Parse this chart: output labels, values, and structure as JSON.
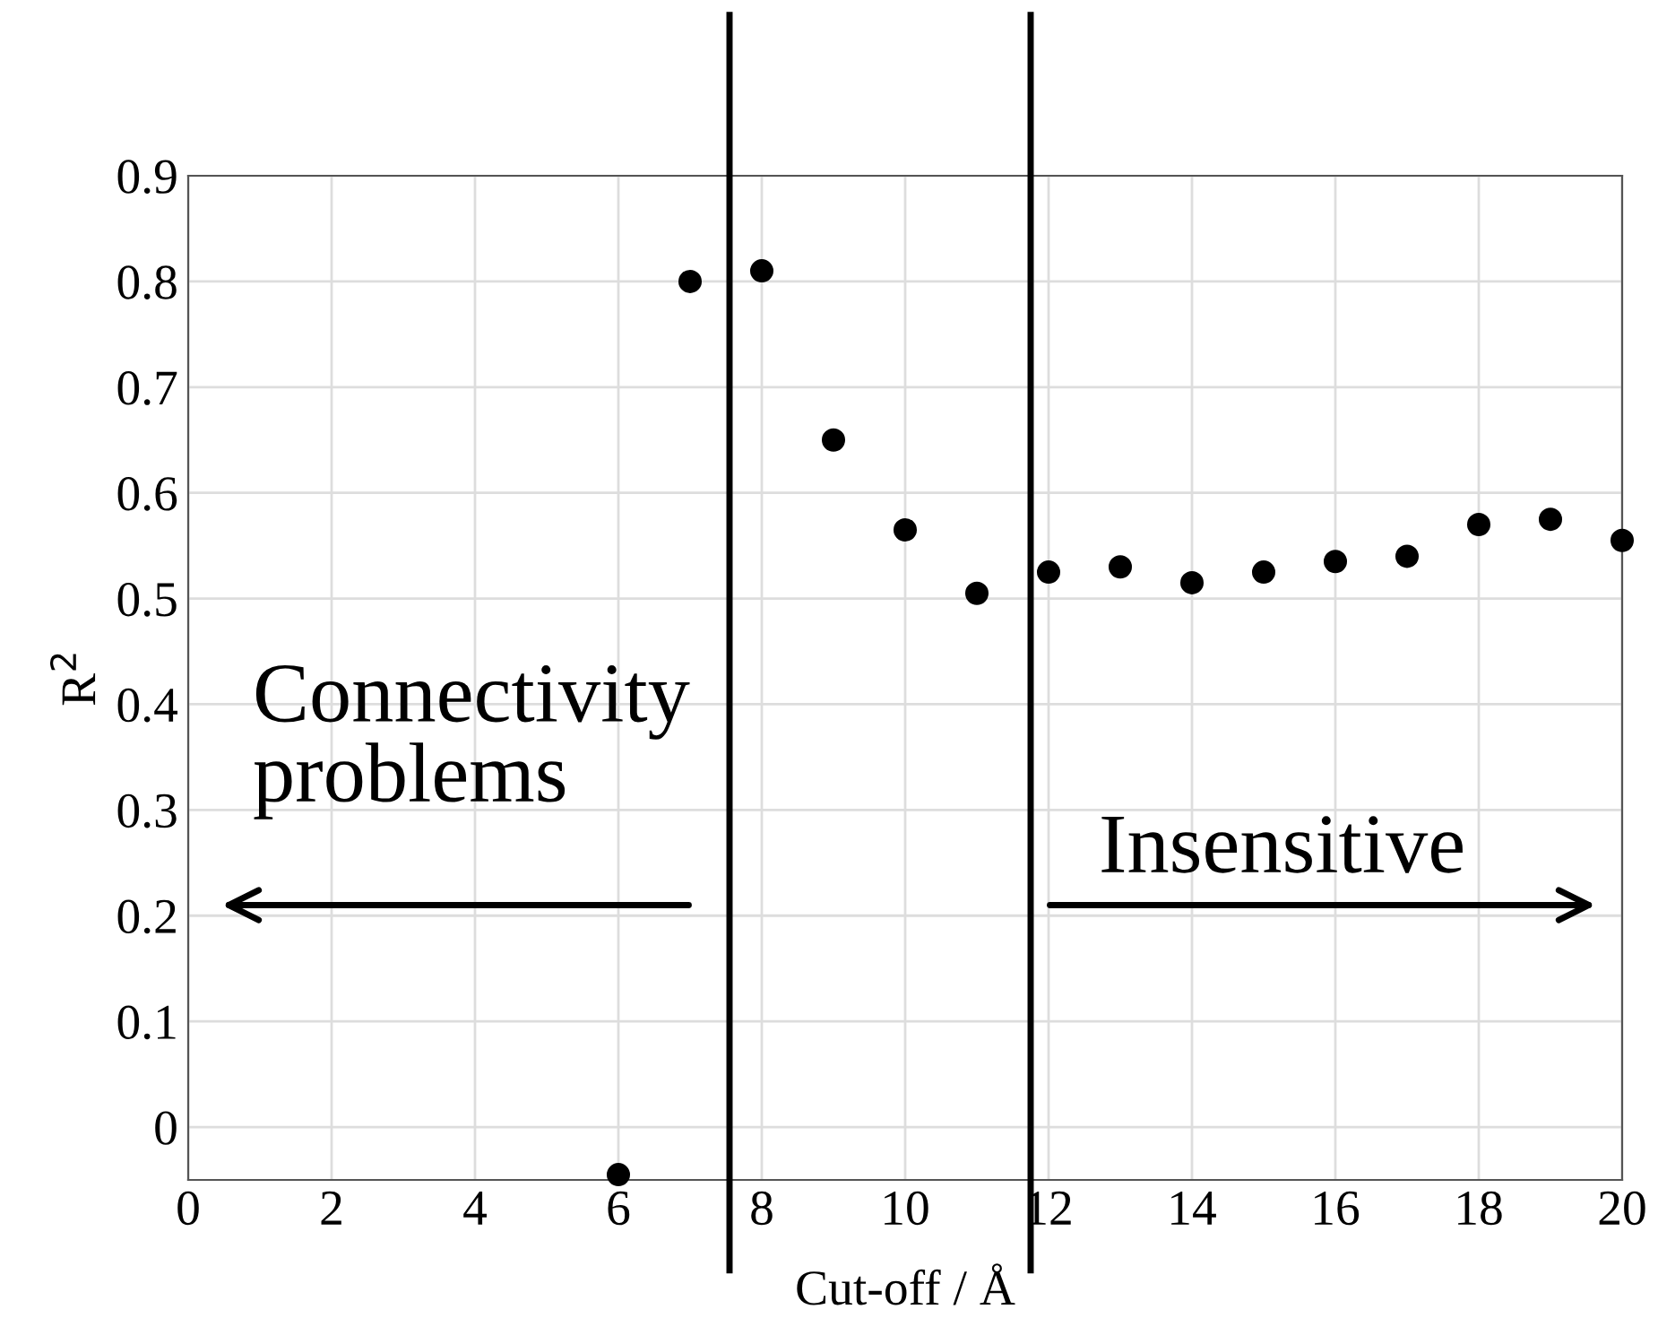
{
  "chart_data": {
    "type": "scatter",
    "xlabel": "Cut-off / Å",
    "ylabel": "R$^{2}$",
    "x": [
      6,
      7,
      8,
      9,
      10,
      11,
      12,
      13,
      14,
      15,
      16,
      17,
      18,
      19,
      20
    ],
    "series": [
      {
        "color": "#000000",
        "values": [
          -0.045,
          0.8,
          0.81,
          0.65,
          0.565,
          0.505,
          0.525,
          0.53,
          0.515,
          0.525,
          0.535,
          0.54,
          0.57,
          0.575,
          0.555
        ]
      }
    ],
    "xlim": [
      0,
      20
    ],
    "xticks": [
      0,
      2,
      4,
      6,
      8,
      10,
      12,
      14,
      16,
      18,
      20
    ],
    "ylim": [
      -0.05,
      0.9
    ],
    "yticks": [
      0,
      0.1,
      0.2,
      0.3,
      0.4,
      0.5,
      0.6,
      0.7,
      0.8,
      0.9
    ],
    "grid": true,
    "marker": "circle",
    "ref_lines": [
      {
        "axis": "x",
        "value": 7.55,
        "color": "#000000"
      },
      {
        "axis": "x",
        "value": 11.75,
        "color": "#000000"
      }
    ],
    "annotations": [
      "Connectivity\nproblems",
      "Insensitive"
    ]
  }
}
